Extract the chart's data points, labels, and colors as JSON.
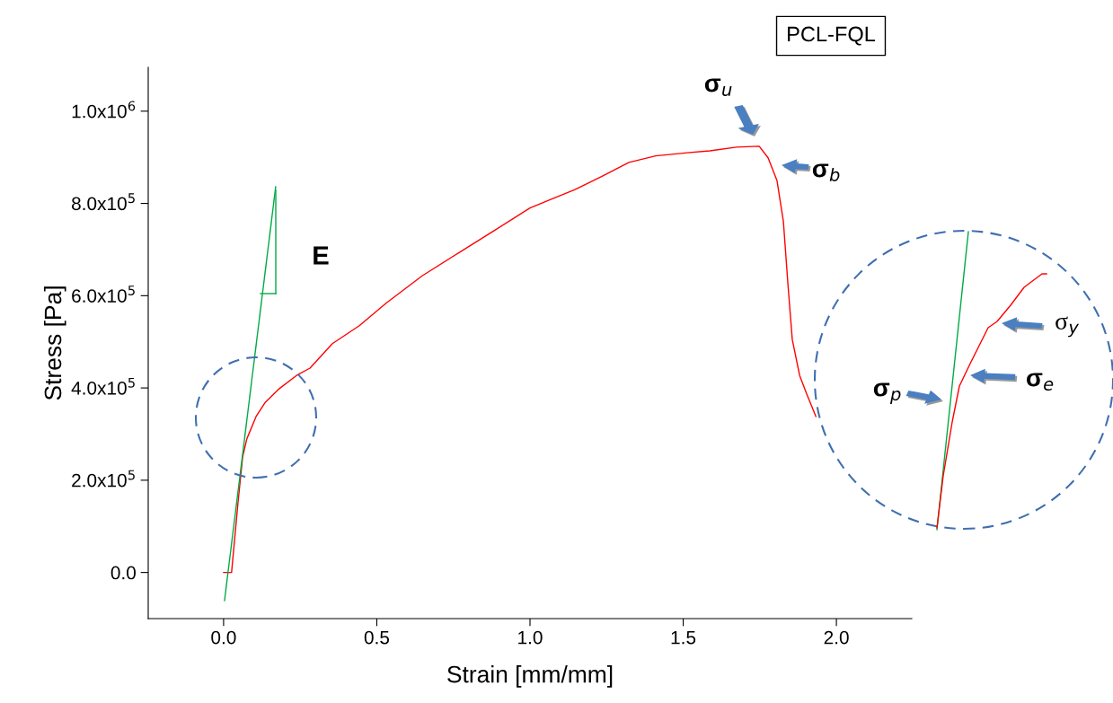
{
  "chart_data": {
    "type": "line",
    "title": "PCL-FQL",
    "xlabel": "Strain [mm/mm]",
    "ylabel": "Stress [Pa]",
    "xlim": [
      -0.246,
      2.246
    ],
    "ylim": [
      -100000,
      1095000
    ],
    "xticks": [
      {
        "value": 0,
        "label": "0.0"
      },
      {
        "value": 0.5,
        "label": "0.5"
      },
      {
        "value": 1,
        "label": "1.0"
      },
      {
        "value": 1.5,
        "label": "1.5"
      },
      {
        "value": 2,
        "label": "2.0"
      }
    ],
    "yticks": [
      {
        "value": 0,
        "label": "0.0"
      },
      {
        "value": 200000,
        "label": "2.0x10$^{5}$"
      },
      {
        "value": 400000,
        "label": "4.0x10$^{5}$"
      },
      {
        "value": 600000,
        "label": "6.0x10$^{5}$"
      },
      {
        "value": 800000,
        "label": "8.0x10$^{5}$"
      },
      {
        "value": 1000000,
        "label": "1.0x10$^{6}$"
      }
    ],
    "grid": false,
    "legend": false,
    "series": [
      {
        "color": "#ff0000",
        "x": [
          0,
          0.026,
          0.047,
          0.062,
          0.076,
          0.106,
          0.135,
          0.179,
          0.238,
          0.282,
          0.355,
          0.443,
          0.531,
          0.648,
          0.765,
          0.883,
          1.0,
          1.073,
          1.147,
          1.235,
          1.323,
          1.41,
          1.499,
          1.587,
          1.674,
          1.748,
          1.777,
          1.806,
          1.827,
          1.842,
          1.856,
          1.88,
          1.903,
          1.933
        ],
        "values": [
          0,
          0,
          151000,
          250000,
          290000,
          338000,
          368000,
          397000,
          427000,
          443000,
          496000,
          535000,
          584000,
          643000,
          692000,
          741000,
          790000,
          810000,
          830000,
          859000,
          889000,
          903000,
          909000,
          914000,
          922000,
          924000,
          899000,
          850000,
          761000,
          623000,
          505000,
          427000,
          387000,
          338000
        ]
      },
      {
        "color": "#00aa44",
        "x": [
          0.003,
          0.17
        ],
        "values": [
          -61000,
          836000
        ]
      }
    ],
    "annotations": [
      "E",
      "σ$_{u}$",
      "σ$_{b}$",
      "σ$_{y}$",
      "σ$_{e}$",
      "σ$_{p}$"
    ]
  }
}
